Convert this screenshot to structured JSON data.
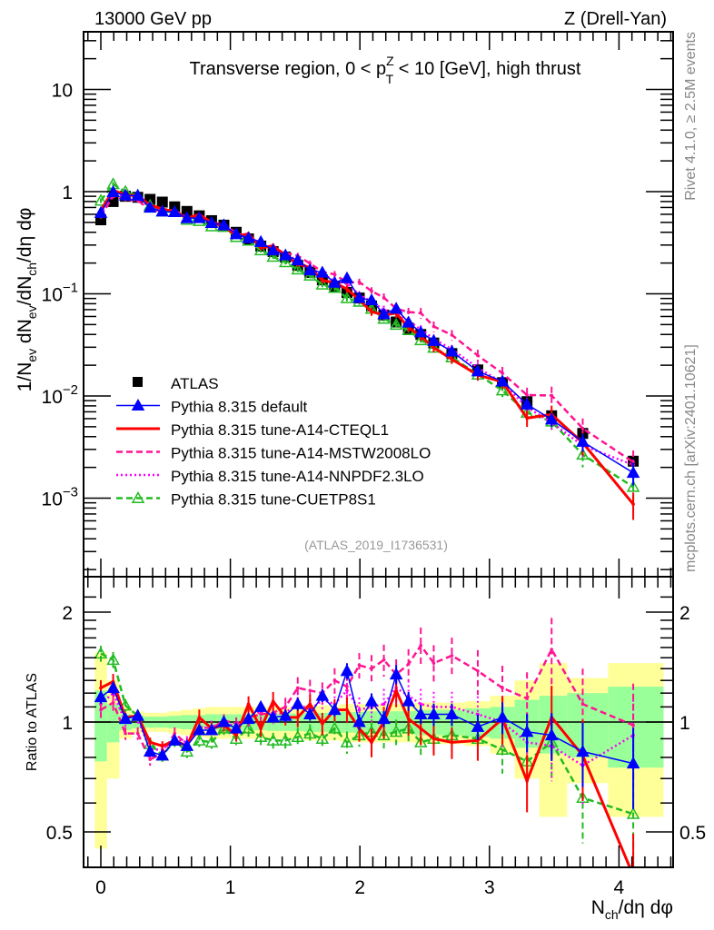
{
  "chart_data": {
    "type": "line",
    "header_left": "13000 GeV pp",
    "header_right": "Z (Drell-Yan)",
    "title": "Transverse region, 0 < p_T^Z < 10 [GeV], high thrust",
    "title_parts": {
      "pre": "Transverse region, 0 < p",
      "sup": "Z",
      "sub": "T",
      "post": " < 10 [GeV], high thrust"
    },
    "ylabel": "1/N_ev dN_ev/dN_ch/dη dφ",
    "ylabel_parts": {
      "a": "1/N",
      "a_sub": "ev",
      "b": " dN",
      "b_sub": "ev",
      "c": "/dN",
      "c_sub": "ch",
      "d": "/dη dφ"
    },
    "xlabel_parts": {
      "a": "N",
      "a_sub": "ch",
      "b": "/dη dφ"
    },
    "ratio_ylabel": "Ratio to ATLAS",
    "side_note_top": "Rivet 4.1.0, ≥ 2.5M events",
    "side_note_bottom": "mcplots.cern.ch [arXiv:2401.10621]",
    "analysis_ref": "(ATLAS_2019_I1736531)",
    "xlim": [
      -0.1,
      4.45
    ],
    "ylim": [
      0.00018,
      35
    ],
    "yscale": "log",
    "ratio_ylim": [
      0.38,
      2.35
    ],
    "ratio_yscale": "log",
    "x_ticks": [
      0,
      1,
      2,
      3,
      4
    ],
    "y_ticks": [
      {
        "value": 10,
        "label": "10",
        "exp": ""
      },
      {
        "value": 1,
        "label": "1",
        "exp": ""
      },
      {
        "value": 0.1,
        "label": "10",
        "exp": "−1"
      },
      {
        "value": 0.01,
        "label": "10",
        "exp": "−2"
      },
      {
        "value": 0.001,
        "label": "10",
        "exp": "−3"
      }
    ],
    "ratio_y_ticks": [
      {
        "value": 2,
        "label": "2"
      },
      {
        "value": 1,
        "label": "1"
      },
      {
        "value": 0.5,
        "label": "0.5"
      }
    ],
    "legend_placement": "bottom-left",
    "x": [
      0.0,
      0.095,
      0.19,
      0.285,
      0.38,
      0.475,
      0.57,
      0.665,
      0.76,
      0.855,
      0.95,
      1.045,
      1.14,
      1.235,
      1.33,
      1.425,
      1.52,
      1.615,
      1.71,
      1.805,
      1.9,
      1.995,
      2.09,
      2.185,
      2.28,
      2.375,
      2.47,
      2.57,
      2.71,
      2.91,
      3.1,
      3.29,
      3.48,
      3.72,
      4.11
    ],
    "atlas": {
      "name": "ATLAS",
      "values": [
        0.53,
        0.8,
        0.9,
        0.88,
        0.84,
        0.79,
        0.71,
        0.64,
        0.58,
        0.52,
        0.47,
        0.4,
        0.345,
        0.293,
        0.259,
        0.229,
        0.19,
        0.162,
        0.137,
        0.119,
        0.103,
        0.091,
        0.076,
        0.062,
        0.053,
        0.046,
        0.04,
        0.033,
        0.026,
        0.018,
        0.0135,
        0.0088,
        0.0064,
        0.0043,
        0.0023
      ],
      "stat_band": [
        0.22,
        0.12,
        0.05,
        0.04,
        0.035,
        0.035,
        0.04,
        0.045,
        0.045,
        0.05,
        0.05,
        0.05,
        0.05,
        0.05,
        0.055,
        0.055,
        0.055,
        0.06,
        0.06,
        0.065,
        0.065,
        0.065,
        0.07,
        0.07,
        0.07,
        0.07,
        0.08,
        0.08,
        0.08,
        0.09,
        0.1,
        0.15,
        0.18,
        0.2,
        0.25
      ],
      "total_band": [
        0.55,
        0.3,
        0.1,
        0.07,
        0.06,
        0.06,
        0.07,
        0.08,
        0.09,
        0.1,
        0.1,
        0.1,
        0.1,
        0.1,
        0.1,
        0.1,
        0.1,
        0.11,
        0.11,
        0.11,
        0.12,
        0.12,
        0.12,
        0.12,
        0.12,
        0.12,
        0.13,
        0.13,
        0.13,
        0.14,
        0.18,
        0.3,
        0.45,
        0.32,
        0.45
      ]
    },
    "series": [
      {
        "name": "Pythia 8.315 default",
        "color": "#0000ff",
        "style": "solid",
        "marker": "filled-triangle",
        "ratio": [
          1.17,
          1.24,
          1.02,
          1.04,
          0.83,
          0.81,
          0.89,
          0.86,
          0.95,
          0.95,
          1.0,
          0.96,
          1.02,
          1.1,
          1.03,
          1.04,
          1.12,
          1.05,
          1.18,
          1.08,
          1.38,
          1.0,
          1.14,
          1.02,
          1.35,
          1.14,
          1.05,
          1.05,
          1.05,
          0.97,
          1.03,
          0.94,
          0.92,
          0.83,
          0.77
        ],
        "err": [
          0.04,
          0.04,
          0.03,
          0.03,
          0.03,
          0.03,
          0.03,
          0.03,
          0.03,
          0.03,
          0.03,
          0.03,
          0.03,
          0.03,
          0.03,
          0.04,
          0.04,
          0.04,
          0.04,
          0.04,
          0.05,
          0.05,
          0.05,
          0.05,
          0.06,
          0.06,
          0.06,
          0.07,
          0.07,
          0.08,
          0.1,
          0.12,
          0.15,
          0.2,
          0.25
        ]
      },
      {
        "name": "Pythia 8.315 tune-A14-CTEQL1",
        "color": "#ff0000",
        "style": "solid-thick",
        "marker": "none",
        "ratio": [
          1.24,
          1.29,
          1.03,
          1.04,
          0.88,
          0.86,
          0.89,
          0.86,
          1.03,
          0.96,
          0.98,
          0.92,
          1.12,
          0.96,
          1.14,
          1.03,
          1.03,
          1.12,
          0.99,
          1.08,
          1.08,
          0.96,
          0.88,
          1.0,
          1.22,
          1.02,
          0.96,
          0.9,
          0.88,
          0.89,
          1.02,
          0.69,
          1.03,
          0.81,
          0.38
        ],
        "err": [
          0.05,
          0.05,
          0.03,
          0.03,
          0.03,
          0.03,
          0.03,
          0.03,
          0.05,
          0.04,
          0.04,
          0.04,
          0.05,
          0.05,
          0.06,
          0.05,
          0.06,
          0.06,
          0.07,
          0.07,
          0.08,
          0.08,
          0.09,
          0.1,
          0.1,
          0.1,
          0.1,
          0.1,
          0.1,
          0.12,
          0.15,
          0.18,
          0.22,
          0.25,
          0.3
        ]
      },
      {
        "name": "Pythia 8.315 tune-A14-MSTW2008LO",
        "color": "#ff1493",
        "style": "dashed",
        "marker": "none",
        "ratio": [
          1.08,
          1.13,
          0.93,
          0.93,
          0.79,
          0.82,
          0.93,
          0.87,
          0.97,
          0.96,
          1.01,
          0.99,
          1.03,
          1.05,
          1.06,
          1.1,
          1.24,
          1.22,
          1.2,
          1.3,
          1.25,
          1.43,
          1.4,
          1.48,
          1.35,
          1.44,
          1.62,
          1.45,
          1.52,
          1.38,
          1.24,
          1.16,
          1.58,
          1.12,
          0.98
        ],
        "err": [
          0.05,
          0.05,
          0.04,
          0.04,
          0.04,
          0.04,
          0.04,
          0.04,
          0.04,
          0.04,
          0.04,
          0.04,
          0.05,
          0.05,
          0.06,
          0.06,
          0.07,
          0.07,
          0.07,
          0.08,
          0.08,
          0.08,
          0.09,
          0.1,
          0.1,
          0.1,
          0.12,
          0.12,
          0.12,
          0.14,
          0.15,
          0.18,
          0.22,
          0.25,
          0.3
        ]
      },
      {
        "name": "Pythia 8.315 tune-A14-NNPDF2.3LO",
        "color": "#ff00ff",
        "style": "dotted",
        "marker": "none",
        "ratio": [
          1.12,
          1.2,
          1.0,
          1.02,
          0.84,
          0.84,
          0.9,
          0.88,
          0.96,
          0.97,
          1.0,
          0.97,
          1.02,
          1.07,
          1.05,
          1.06,
          1.12,
          1.08,
          1.15,
          1.12,
          1.22,
          1.08,
          1.1,
          1.12,
          1.24,
          1.18,
          1.12,
          1.1,
          1.1,
          1.05,
          1.0,
          0.88,
          0.86,
          0.76,
          0.92
        ],
        "err": [
          0.05,
          0.05,
          0.04,
          0.04,
          0.04,
          0.04,
          0.04,
          0.04,
          0.04,
          0.04,
          0.04,
          0.04,
          0.05,
          0.05,
          0.06,
          0.06,
          0.07,
          0.07,
          0.07,
          0.08,
          0.08,
          0.08,
          0.09,
          0.1,
          0.1,
          0.1,
          0.1,
          0.1,
          0.1,
          0.12,
          0.15,
          0.18,
          0.2,
          0.22,
          0.25
        ]
      },
      {
        "name": "Pythia 8.315 tune-CUETP8S1",
        "color": "#22bb22",
        "style": "dashed",
        "marker": "open-triangle",
        "ratio": [
          1.54,
          1.48,
          1.11,
          1.04,
          0.87,
          0.81,
          0.89,
          0.83,
          0.89,
          0.88,
          0.96,
          0.9,
          0.96,
          0.91,
          0.89,
          0.89,
          0.91,
          0.93,
          0.9,
          0.96,
          0.88,
          0.92,
          0.94,
          0.92,
          0.94,
          0.96,
          0.88,
          0.9,
          0.92,
          0.9,
          0.84,
          0.78,
          0.88,
          0.62,
          0.56
        ],
        "err": [
          0.05,
          0.05,
          0.04,
          0.04,
          0.04,
          0.04,
          0.04,
          0.04,
          0.04,
          0.04,
          0.04,
          0.04,
          0.05,
          0.05,
          0.05,
          0.05,
          0.06,
          0.06,
          0.06,
          0.07,
          0.07,
          0.07,
          0.08,
          0.08,
          0.08,
          0.09,
          0.09,
          0.1,
          0.1,
          0.12,
          0.14,
          0.16,
          0.2,
          0.25,
          0.3
        ]
      }
    ],
    "colors": {
      "stat_band": "#99ff99",
      "total_band": "#ffff99",
      "atlas": "#000000"
    }
  }
}
